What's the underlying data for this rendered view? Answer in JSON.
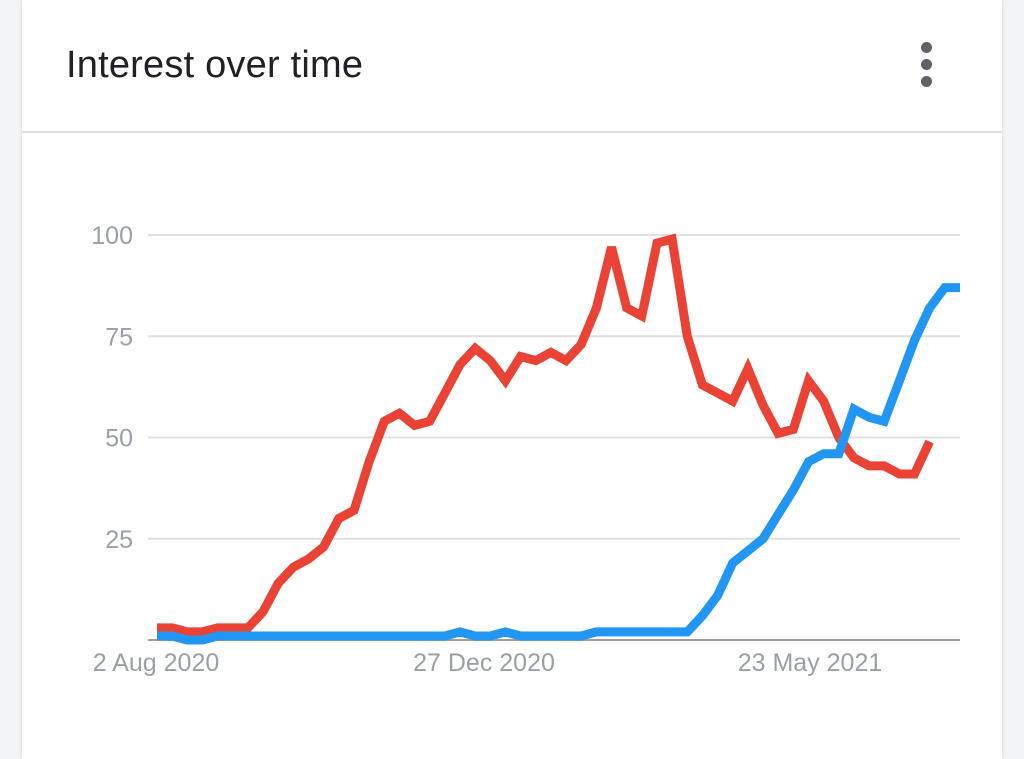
{
  "card": {
    "title": "Interest over time",
    "menu_icon": "more-vert-icon"
  },
  "chart_data": {
    "type": "line",
    "title": "Interest over time",
    "xlabel": "",
    "ylabel": "",
    "ylim": [
      0,
      100
    ],
    "yticks": [
      0,
      25,
      50,
      75,
      100
    ],
    "ytick_labels": [
      "25",
      "50",
      "75",
      "100"
    ],
    "xtick_labels": [
      "2 Aug 2020",
      "27 Dec 2020",
      "23 May 2021"
    ],
    "grid": true,
    "legend": "none",
    "x_start": "2 Aug 2020",
    "x_interval": "week",
    "series": [
      {
        "color": "#ea4335",
        "values": [
          3,
          3,
          2,
          2,
          3,
          3,
          3,
          7,
          14,
          18,
          20,
          23,
          30,
          32,
          44,
          54,
          56,
          53,
          54,
          61,
          68,
          72,
          69,
          64,
          70,
          69,
          71,
          69,
          73,
          82,
          97,
          82,
          80,
          98,
          99,
          75,
          63,
          61,
          59,
          67,
          58,
          51,
          52,
          64,
          59,
          50,
          45,
          43,
          43,
          41,
          41,
          49
        ]
      },
      {
        "color": "#2196f3",
        "values": [
          1,
          1,
          0,
          0,
          1,
          1,
          1,
          1,
          1,
          1,
          1,
          1,
          1,
          1,
          1,
          1,
          1,
          1,
          1,
          1,
          2,
          1,
          1,
          2,
          1,
          1,
          1,
          1,
          1,
          2,
          2,
          2,
          2,
          2,
          2,
          2,
          6,
          11,
          19,
          22,
          25,
          31,
          37,
          44,
          46,
          46,
          57,
          55,
          54,
          64,
          74,
          82,
          87,
          87
        ]
      }
    ]
  }
}
